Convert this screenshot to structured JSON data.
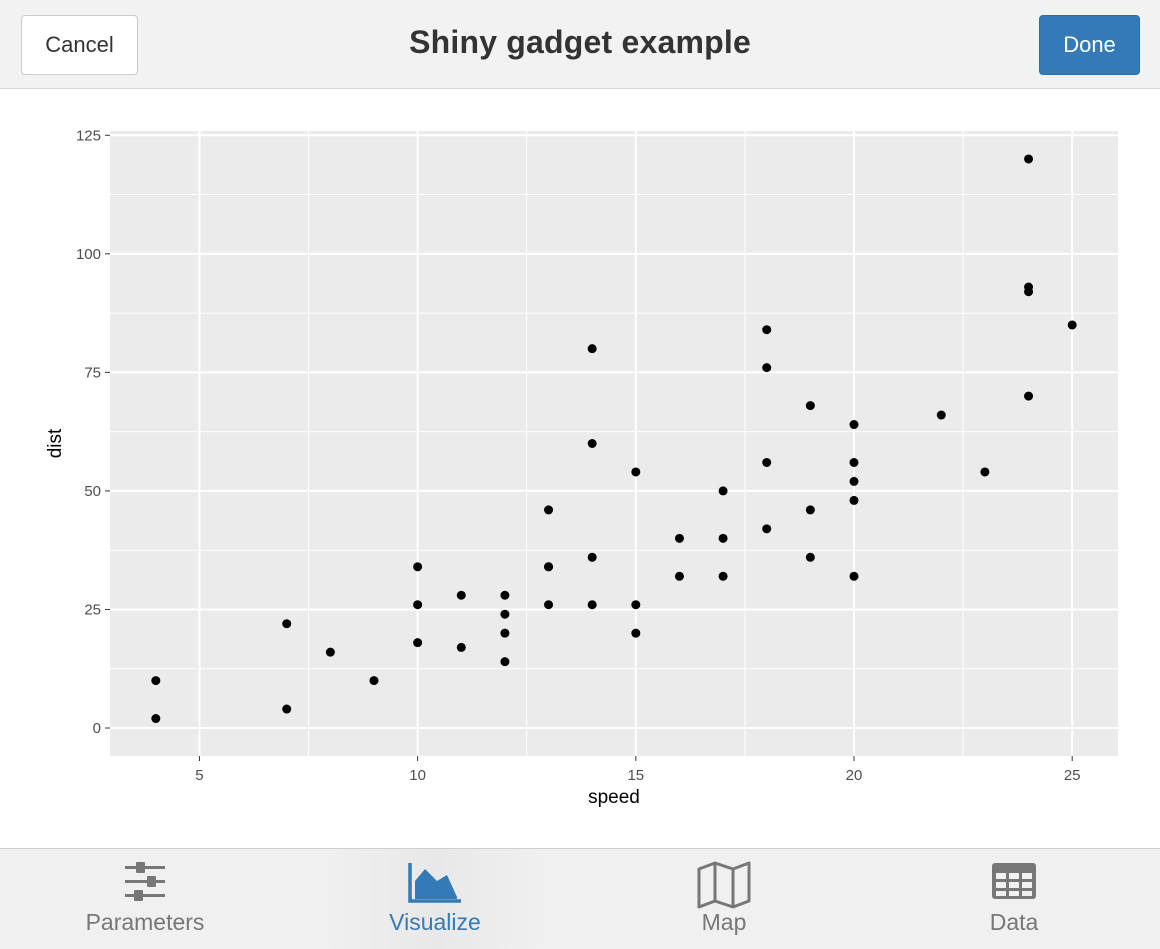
{
  "header": {
    "title": "Shiny gadget example",
    "cancel_label": "Cancel",
    "done_label": "Done"
  },
  "tabs": [
    {
      "label": "Parameters",
      "icon": "sliders-icon",
      "active": false
    },
    {
      "label": "Visualize",
      "icon": "area-chart-icon",
      "active": true
    },
    {
      "label": "Map",
      "icon": "map-icon",
      "active": false
    },
    {
      "label": "Data",
      "icon": "table-icon",
      "active": false
    }
  ],
  "colors": {
    "accent": "#337ab7",
    "panel_bg": "#ebebeb",
    "point": "#000000"
  },
  "chart_data": {
    "type": "scatter",
    "xlabel": "speed",
    "ylabel": "dist",
    "xlim": [
      2.95,
      26.05
    ],
    "ylim": [
      -5.9,
      125.9
    ],
    "x_ticks": [
      5,
      10,
      15,
      20,
      25
    ],
    "y_ticks": [
      0,
      25,
      50,
      75,
      100,
      125
    ],
    "grid": true,
    "points": [
      [
        4,
        2
      ],
      [
        4,
        10
      ],
      [
        7,
        4
      ],
      [
        7,
        22
      ],
      [
        8,
        16
      ],
      [
        9,
        10
      ],
      [
        10,
        18
      ],
      [
        10,
        26
      ],
      [
        10,
        34
      ],
      [
        11,
        17
      ],
      [
        11,
        28
      ],
      [
        12,
        14
      ],
      [
        12,
        20
      ],
      [
        12,
        24
      ],
      [
        12,
        28
      ],
      [
        13,
        26
      ],
      [
        13,
        34
      ],
      [
        13,
        34
      ],
      [
        13,
        46
      ],
      [
        14,
        26
      ],
      [
        14,
        36
      ],
      [
        14,
        60
      ],
      [
        14,
        80
      ],
      [
        15,
        20
      ],
      [
        15,
        26
      ],
      [
        15,
        54
      ],
      [
        16,
        32
      ],
      [
        16,
        40
      ],
      [
        17,
        32
      ],
      [
        17,
        40
      ],
      [
        17,
        50
      ],
      [
        18,
        42
      ],
      [
        18,
        56
      ],
      [
        18,
        76
      ],
      [
        18,
        84
      ],
      [
        19,
        36
      ],
      [
        19,
        46
      ],
      [
        19,
        68
      ],
      [
        20,
        32
      ],
      [
        20,
        48
      ],
      [
        20,
        52
      ],
      [
        20,
        56
      ],
      [
        20,
        64
      ],
      [
        22,
        66
      ],
      [
        23,
        54
      ],
      [
        24,
        70
      ],
      [
        24,
        92
      ],
      [
        24,
        93
      ],
      [
        24,
        120
      ],
      [
        25,
        85
      ]
    ]
  }
}
